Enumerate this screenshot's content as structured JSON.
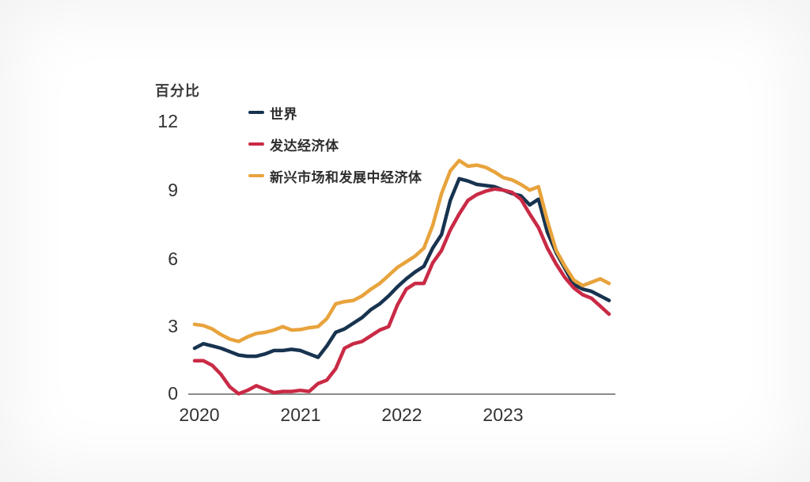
{
  "accent_colors": {
    "world_line": "#17334f",
    "advanced_economies_line": "#c92a45",
    "emde_line": "#e8a33c",
    "axis_line": "#8c8c8c",
    "tick_text": "#333333"
  },
  "chart_data": {
    "type": "line",
    "ylabel": "百分比",
    "ylim": [
      0,
      12
    ],
    "y_ticks": [
      "12",
      "9",
      "6",
      "3",
      "0"
    ],
    "y_tick_values": [
      12,
      9,
      6,
      3,
      0
    ],
    "x_tick_labels": [
      "2020",
      "2021",
      "2022",
      "2023"
    ],
    "frequency": "monthly",
    "points_per_year": 12,
    "grid": false,
    "legend_position": "top-left",
    "series": [
      {
        "name": "世界",
        "color": "#17334f",
        "values": [
          2.0,
          2.2,
          2.1,
          2.0,
          1.85,
          1.7,
          1.65,
          1.65,
          1.75,
          1.9,
          1.9,
          1.95,
          1.9,
          1.75,
          1.6,
          2.1,
          2.7,
          2.85,
          3.1,
          3.35,
          3.7,
          3.95,
          4.3,
          4.7,
          5.05,
          5.35,
          5.6,
          6.4,
          7.0,
          8.5,
          9.45,
          9.35,
          9.2,
          9.15,
          9.1,
          8.95,
          8.8,
          8.7,
          8.3,
          8.55,
          7.1,
          6.2,
          5.5,
          4.8,
          4.6,
          4.5,
          4.3,
          4.1
        ]
      },
      {
        "name": "发达经济体",
        "color": "#c92a45",
        "values": [
          1.45,
          1.45,
          1.25,
          0.85,
          0.3,
          0.0,
          0.15,
          0.35,
          0.2,
          0.05,
          0.1,
          0.1,
          0.15,
          0.1,
          0.45,
          0.6,
          1.1,
          2.0,
          2.2,
          2.3,
          2.55,
          2.8,
          2.95,
          3.9,
          4.6,
          4.85,
          4.85,
          5.75,
          6.3,
          7.2,
          7.9,
          8.5,
          8.75,
          8.9,
          9.0,
          8.95,
          8.85,
          8.55,
          7.9,
          7.3,
          6.4,
          5.7,
          5.1,
          4.65,
          4.35,
          4.2,
          3.85,
          3.5
        ]
      },
      {
        "name": "新兴市场和发展中经济体",
        "color": "#e8a33c",
        "values": [
          3.05,
          3.0,
          2.85,
          2.6,
          2.4,
          2.3,
          2.5,
          2.65,
          2.7,
          2.8,
          2.95,
          2.8,
          2.82,
          2.9,
          2.95,
          3.3,
          3.95,
          4.05,
          4.1,
          4.3,
          4.6,
          4.85,
          5.2,
          5.55,
          5.8,
          6.05,
          6.4,
          7.4,
          8.8,
          9.8,
          10.25,
          10.0,
          10.05,
          9.95,
          9.75,
          9.5,
          9.4,
          9.2,
          8.95,
          9.1,
          7.6,
          6.3,
          5.6,
          5.0,
          4.75,
          4.9,
          5.05,
          4.85
        ]
      }
    ]
  }
}
